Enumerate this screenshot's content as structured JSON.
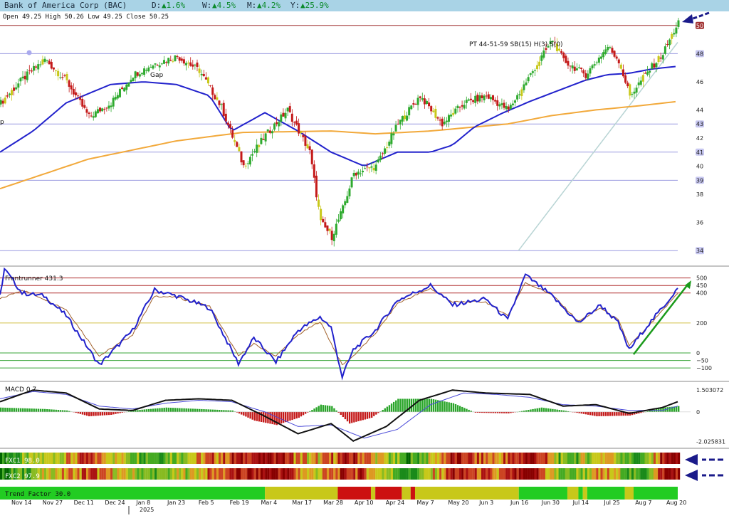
{
  "header": {
    "title": "Bank of America Corp (BAC)",
    "d_label": "D:",
    "d_value": "▲1.6%",
    "w_label": "W:",
    "w_value": "▲4.5%",
    "m_label": "M:",
    "m_value": "▲4.2%",
    "y_label": "Y:",
    "y_value": "▲25.9%",
    "ohlc": "Open 49.25  High 50.26  Low 49.25  Close 50.25",
    "last_price": "50"
  },
  "annotations": {
    "gap": "Gap",
    "pt": "PT 44-51-59 SB(15) H(3) S(0)",
    "p": "p"
  },
  "colors": {
    "up_candle": "#2eaa2e",
    "down_candle": "#c41a1a",
    "neutral_candle": "#c8c81a",
    "ma_fast": "#2222cc",
    "ma_slow": "#f2a93b",
    "hline": "#9a9ae0",
    "arrow_blue": "#1a1a8a",
    "arrow_green": "#1a9a1a",
    "macd_pos": "#2aa52a",
    "macd_neg": "#c41a1a"
  },
  "chart_data": [
    {
      "type": "candlestick",
      "title": "Bank of America Corp (BAC)",
      "ylim": [
        33,
        51
      ],
      "yticks": [
        34,
        36,
        38,
        39,
        40,
        41,
        42,
        43,
        44,
        46,
        48,
        50
      ],
      "highlighted_levels": [
        34,
        39,
        41,
        43,
        48,
        50
      ],
      "xlabels": [
        "Nov 14",
        "Nov 27",
        "Dec 11",
        "Dec 24",
        "Jan 8",
        "Jan 23",
        "Feb 5",
        "Feb 19",
        "Mar 4",
        "Mar 17",
        "Mar 28",
        "Apr 10",
        "Apr 24",
        "May 7",
        "May 20",
        "Jun 3",
        "Jun 16",
        "Jun 30",
        "Jul 14",
        "Jul 25",
        "Aug 7",
        "Aug 20"
      ],
      "year_label": "2025",
      "close_path": [
        [
          0,
          44.5
        ],
        [
          10,
          46.2
        ],
        [
          20,
          47.6
        ],
        [
          30,
          46.0
        ],
        [
          40,
          43.5
        ],
        [
          50,
          44.5
        ],
        [
          60,
          46.5
        ],
        [
          70,
          47.3
        ],
        [
          80,
          47.8
        ],
        [
          90,
          46.8
        ],
        [
          100,
          44.2
        ],
        [
          110,
          40.0
        ],
        [
          120,
          42.2
        ],
        [
          130,
          44.0
        ],
        [
          140,
          41.0
        ],
        [
          145,
          36.0
        ],
        [
          150,
          35.0
        ],
        [
          155,
          37.0
        ],
        [
          160,
          39.5
        ],
        [
          170,
          40.0
        ],
        [
          180,
          43.0
        ],
        [
          190,
          45.0
        ],
        [
          200,
          43.0
        ],
        [
          210,
          44.5
        ],
        [
          220,
          45.0
        ],
        [
          230,
          44.0
        ],
        [
          240,
          46.5
        ],
        [
          250,
          49.0
        ],
        [
          255,
          47.5
        ],
        [
          265,
          46.5
        ],
        [
          275,
          48.5
        ],
        [
          280,
          47.5
        ],
        [
          285,
          45.0
        ],
        [
          292,
          46.5
        ],
        [
          300,
          48.0
        ],
        [
          307,
          50.25
        ]
      ],
      "ma_fast": [
        [
          0,
          41.0
        ],
        [
          15,
          42.5
        ],
        [
          30,
          44.5
        ],
        [
          50,
          45.8
        ],
        [
          65,
          46.0
        ],
        [
          80,
          45.8
        ],
        [
          95,
          45.0
        ],
        [
          105,
          42.5
        ],
        [
          120,
          43.8
        ],
        [
          135,
          42.5
        ],
        [
          150,
          41.0
        ],
        [
          165,
          40.0
        ],
        [
          180,
          41.0
        ],
        [
          195,
          41.0
        ],
        [
          205,
          41.5
        ],
        [
          215,
          42.8
        ],
        [
          228,
          43.8
        ],
        [
          240,
          44.6
        ],
        [
          255,
          45.5
        ],
        [
          265,
          46.1
        ],
        [
          275,
          46.5
        ],
        [
          285,
          46.6
        ],
        [
          295,
          46.9
        ],
        [
          307,
          47.1
        ]
      ],
      "ma_slow": [
        [
          0,
          38.4
        ],
        [
          40,
          40.5
        ],
        [
          80,
          41.8
        ],
        [
          110,
          42.4
        ],
        [
          150,
          42.5
        ],
        [
          170,
          42.3
        ],
        [
          195,
          42.5
        ],
        [
          230,
          43.0
        ],
        [
          250,
          43.6
        ],
        [
          270,
          44.0
        ],
        [
          290,
          44.3
        ],
        [
          307,
          44.6
        ]
      ],
      "trendline": [
        [
          230,
          34.0
        ],
        [
          307,
          48.8
        ]
      ]
    },
    {
      "type": "line",
      "title": "Frontrunner 431.3",
      "ylim": [
        -180,
        560
      ],
      "yticks": [
        -100,
        -50,
        0,
        200,
        400,
        450,
        500
      ],
      "levels_red": [
        400,
        450,
        500
      ],
      "levels_yellow": [
        200
      ],
      "levels_green": [
        -100,
        -50,
        0
      ],
      "series": [
        {
          "name": "Frontrunner",
          "values": [
            [
              0,
              380
            ],
            [
              2,
              560
            ],
            [
              10,
              400
            ],
            [
              20,
              380
            ],
            [
              30,
              250
            ],
            [
              45,
              -80
            ],
            [
              60,
              150
            ],
            [
              70,
              420
            ],
            [
              80,
              380
            ],
            [
              95,
              300
            ],
            [
              108,
              -70
            ],
            [
              115,
              100
            ],
            [
              125,
              -60
            ],
            [
              135,
              150
            ],
            [
              145,
              240
            ],
            [
              150,
              170
            ],
            [
              155,
              -160
            ],
            [
              160,
              20
            ],
            [
              170,
              150
            ],
            [
              180,
              350
            ],
            [
              195,
              450
            ],
            [
              205,
              320
            ],
            [
              220,
              360
            ],
            [
              230,
              220
            ],
            [
              238,
              520
            ],
            [
              250,
              380
            ],
            [
              262,
              200
            ],
            [
              272,
              320
            ],
            [
              280,
              200
            ],
            [
              285,
              20
            ],
            [
              292,
              160
            ],
            [
              300,
              300
            ],
            [
              307,
              431
            ]
          ]
        },
        {
          "name": "Signal",
          "values": [
            [
              0,
              360
            ],
            [
              10,
              420
            ],
            [
              20,
              360
            ],
            [
              30,
              290
            ],
            [
              45,
              -20
            ],
            [
              60,
              120
            ],
            [
              70,
              380
            ],
            [
              80,
              370
            ],
            [
              95,
              310
            ],
            [
              108,
              -20
            ],
            [
              115,
              60
            ],
            [
              125,
              -20
            ],
            [
              135,
              120
            ],
            [
              145,
              210
            ],
            [
              155,
              -80
            ],
            [
              160,
              -20
            ],
            [
              170,
              130
            ],
            [
              180,
              330
            ],
            [
              195,
              430
            ],
            [
              205,
              340
            ],
            [
              220,
              340
            ],
            [
              230,
              250
            ],
            [
              238,
              470
            ],
            [
              250,
              390
            ],
            [
              262,
              210
            ],
            [
              272,
              300
            ],
            [
              280,
              220
            ],
            [
              285,
              50
            ],
            [
              292,
              150
            ],
            [
              300,
              280
            ],
            [
              307,
              400
            ]
          ]
        }
      ]
    },
    {
      "type": "bar",
      "title": "MACD 0.7",
      "ylim": [
        -2.4,
        1.9
      ],
      "yticks": [
        -2.025831,
        0,
        1.503072
      ],
      "ytick_labels": [
        "-2.025831",
        "0",
        "1.503072"
      ],
      "series": [
        {
          "name": "MACD",
          "values": [
            [
              0,
              0.7
            ],
            [
              15,
              1.5
            ],
            [
              30,
              1.3
            ],
            [
              45,
              0.2
            ],
            [
              60,
              0.1
            ],
            [
              75,
              0.8
            ],
            [
              90,
              0.9
            ],
            [
              105,
              0.8
            ],
            [
              120,
              -0.3
            ],
            [
              135,
              -1.5
            ],
            [
              150,
              -0.8
            ],
            [
              160,
              -2.0
            ],
            [
              175,
              -1.0
            ],
            [
              190,
              0.8
            ],
            [
              205,
              1.5
            ],
            [
              220,
              1.3
            ],
            [
              240,
              1.2
            ],
            [
              255,
              0.4
            ],
            [
              270,
              0.5
            ],
            [
              285,
              -0.1
            ],
            [
              300,
              0.3
            ],
            [
              307,
              0.7
            ]
          ]
        },
        {
          "name": "Signal",
          "values": [
            [
              0,
              0.9
            ],
            [
              15,
              1.4
            ],
            [
              30,
              1.2
            ],
            [
              45,
              0.4
            ],
            [
              60,
              0.2
            ],
            [
              75,
              0.6
            ],
            [
              90,
              0.8
            ],
            [
              105,
              0.7
            ],
            [
              120,
              0.0
            ],
            [
              135,
              -1.0
            ],
            [
              150,
              -0.9
            ],
            [
              165,
              -1.8
            ],
            [
              180,
              -1.2
            ],
            [
              195,
              0.5
            ],
            [
              210,
              1.3
            ],
            [
              225,
              1.2
            ],
            [
              240,
              1.0
            ],
            [
              255,
              0.5
            ],
            [
              270,
              0.4
            ],
            [
              285,
              0.1
            ],
            [
              300,
              0.1
            ],
            [
              307,
              0.4
            ]
          ]
        }
      ],
      "histogram_profile": [
        [
          0,
          0.3
        ],
        [
          20,
          0.2
        ],
        [
          30,
          0.1
        ],
        [
          40,
          -0.3
        ],
        [
          50,
          -0.2
        ],
        [
          60,
          0.1
        ],
        [
          75,
          0.3
        ],
        [
          90,
          0.2
        ],
        [
          105,
          0.1
        ],
        [
          115,
          -0.6
        ],
        [
          125,
          -0.9
        ],
        [
          135,
          -0.4
        ],
        [
          145,
          0.5
        ],
        [
          150,
          0.4
        ],
        [
          158,
          -0.8
        ],
        [
          168,
          -0.4
        ],
        [
          180,
          0.9
        ],
        [
          195,
          0.9
        ],
        [
          205,
          0.6
        ],
        [
          215,
          -0.05
        ],
        [
          230,
          -0.1
        ],
        [
          245,
          0.3
        ],
        [
          255,
          0.1
        ],
        [
          270,
          -0.3
        ],
        [
          285,
          -0.25
        ],
        [
          300,
          0.3
        ],
        [
          307,
          0.4
        ]
      ]
    },
    {
      "type": "heatmap",
      "rows": [
        {
          "label": "FXC1 98.0"
        },
        {
          "label": "FXC2 97.9"
        }
      ]
    },
    {
      "type": "heatmap",
      "label": "Trend Factor 30.0",
      "segments": [
        {
          "from": 0,
          "to": 120,
          "color": "#22cc22"
        },
        {
          "from": 120,
          "to": 153,
          "color": "#c8c81a"
        },
        {
          "from": 153,
          "to": 168,
          "color": "#cc1111"
        },
        {
          "from": 168,
          "to": 170,
          "color": "#c8c81a"
        },
        {
          "from": 170,
          "to": 182,
          "color": "#cc1111"
        },
        {
          "from": 182,
          "to": 186,
          "color": "#c8c81a"
        },
        {
          "from": 186,
          "to": 188,
          "color": "#cc1111"
        },
        {
          "from": 188,
          "to": 235,
          "color": "#c8c81a"
        },
        {
          "from": 235,
          "to": 257,
          "color": "#22cc22"
        },
        {
          "from": 257,
          "to": 262,
          "color": "#c8c81a"
        },
        {
          "from": 262,
          "to": 264,
          "color": "#22cc22"
        },
        {
          "from": 264,
          "to": 266,
          "color": "#c8c81a"
        },
        {
          "from": 266,
          "to": 283,
          "color": "#22cc22"
        },
        {
          "from": 283,
          "to": 287,
          "color": "#c8c81a"
        },
        {
          "from": 287,
          "to": 307,
          "color": "#22cc22"
        }
      ]
    }
  ]
}
